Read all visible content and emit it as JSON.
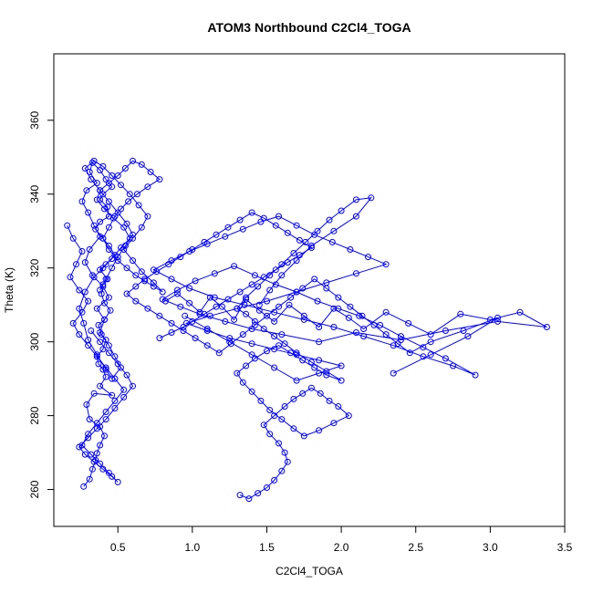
{
  "chart_data": {
    "type": "scatter",
    "title": "ATOM3 Northbound C2Cl4_TOGA",
    "xlabel": "C2Cl4_TOGA",
    "ylabel": "Theta (K)",
    "xlim": [
      0.07,
      3.5
    ],
    "ylim": [
      250,
      378
    ],
    "x_ticks": [
      0.5,
      1.0,
      1.5,
      2.0,
      2.5,
      3.0,
      3.5
    ],
    "x_tick_labels": [
      "0.5",
      "1.0",
      "1.5",
      "2.0",
      "2.5",
      "3.0",
      "3.5"
    ],
    "y_ticks": [
      260,
      280,
      300,
      320,
      340,
      360
    ],
    "y_tick_labels": [
      "260",
      "280",
      "300",
      "320",
      "340",
      "360"
    ],
    "marker": "open-circle",
    "connected": true,
    "grid": false,
    "legend": "none",
    "color": "#0000ff",
    "series": [
      {
        "x": [
          0.27,
          0.31,
          0.33,
          0.35,
          0.36,
          0.38,
          0.41,
          0.38,
          0.31,
          0.29,
          0.34,
          0.46,
          0.38,
          0.42,
          0.4,
          0.37,
          0.36,
          0.4,
          0.42,
          0.39,
          0.37,
          0.41,
          0.45,
          0.41,
          0.39,
          0.4,
          0.43,
          0.38,
          0.42,
          0.48,
          0.44,
          0.4,
          0.35,
          0.38,
          0.44,
          0.43,
          0.38,
          0.4,
          0.46,
          0.42,
          0.38,
          0.33,
          0.31,
          0.36,
          0.29,
          0.26,
          0.3,
          0.34,
          0.38,
          0.31,
          0.28,
          0.33,
          0.4,
          0.44,
          0.36,
          0.41,
          0.38,
          0.44,
          0.48,
          0.52,
          0.46,
          0.42,
          0.36,
          0.3,
          0.27,
          0.24,
          0.28,
          0.34,
          0.4,
          0.46,
          0.52,
          0.58,
          0.54,
          0.47,
          0.41,
          0.36,
          0.38,
          0.44,
          0.5,
          0.55,
          0.6,
          0.66,
          0.72,
          0.78,
          0.7,
          0.63,
          0.57,
          0.52,
          0.48,
          0.44,
          0.4,
          0.44,
          0.5,
          0.56,
          0.62,
          0.68,
          0.74,
          0.8,
          0.74,
          0.66,
          0.6,
          0.54,
          0.6,
          0.66,
          0.7,
          0.64,
          0.58,
          0.52,
          0.46,
          0.4,
          0.34,
          0.28,
          0.32,
          0.38,
          0.44,
          0.5,
          0.56,
          0.6,
          0.55,
          0.5,
          0.46,
          0.42,
          0.38
        ],
        "y": [
          260.8,
          262.8,
          265.5,
          268.0,
          269.8,
          272.0,
          274.5,
          277.0,
          279.0,
          283.0,
          286.0,
          285.5,
          288.0,
          290.5,
          292.5,
          294.0,
          296.0,
          298.0,
          300.5,
          302.0,
          304.5,
          306.0,
          308.5,
          310.5,
          313.0,
          315.5,
          317.0,
          319.5,
          321.0,
          323.5,
          326.0,
          328.0,
          330.5,
          332.5,
          334.0,
          336.5,
          338.5,
          340.0,
          342.0,
          344.0,
          346.5,
          348.5,
          346.0,
          343.0,
          341.0,
          338.0,
          335.0,
          331.5,
          328.5,
          325.0,
          321.5,
          318.0,
          315.0,
          312.0,
          309.0,
          306.0,
          302.5,
          299.0,
          296.0,
          293.0,
          290.0,
          292.5,
          296.5,
          300.5,
          305.0,
          309.0,
          313.5,
          317.5,
          320.0,
          322.5,
          325.5,
          328.0,
          331.0,
          333.5,
          336.0,
          338.5,
          341.0,
          343.0,
          345.0,
          347.0,
          349.0,
          348.0,
          346.0,
          344.0,
          342.0,
          340.0,
          338.0,
          336.0,
          334.0,
          331.0,
          328.0,
          325.0,
          322.0,
          320.0,
          318.0,
          316.5,
          315.0,
          313.5,
          316.0,
          319.0,
          322.0,
          325.0,
          328.0,
          331.0,
          334.0,
          337.0,
          340.0,
          342.5,
          345.0,
          347.5,
          349.0,
          347.0,
          344.0,
          341.0,
          338.0,
          335.0,
          332.0,
          329.0,
          326.0,
          323.0,
          320.0,
          317.0,
          314.0
        ]
      },
      {
        "x": [
          0.82,
          0.9,
          0.98,
          1.05,
          1.12,
          1.2,
          1.28,
          1.36,
          1.45,
          1.55,
          1.65,
          1.75,
          1.85,
          1.95,
          2.05,
          2.15,
          2.3,
          2.45,
          2.6,
          2.8,
          3.0,
          3.2,
          3.38,
          3.05,
          2.7,
          2.4,
          2.1,
          1.85,
          1.6,
          1.4,
          1.22,
          1.05,
          0.92,
          0.8,
          0.9,
          1.02,
          1.15,
          1.28,
          1.42,
          1.56,
          1.7,
          1.84,
          1.98,
          2.12,
          2.26,
          2.4,
          2.55,
          2.7,
          2.9,
          2.75,
          2.55,
          2.35,
          2.15,
          1.95,
          1.75,
          1.55,
          1.35,
          1.15,
          0.98,
          0.86,
          0.74,
          0.86,
          0.98,
          1.1,
          1.22,
          1.34,
          1.46,
          1.58,
          1.7,
          1.82,
          1.94,
          2.06,
          2.18,
          2.3,
          2.1,
          1.9,
          1.7,
          1.5,
          1.3,
          1.12,
          0.96,
          1.1,
          1.25,
          1.4,
          1.55,
          1.7,
          1.85,
          2.0,
          1.85,
          1.7,
          1.55,
          1.4,
          1.25,
          1.1,
          0.95
        ],
        "y": [
          311.0,
          313.0,
          310.5,
          308.0,
          312.0,
          309.5,
          306.0,
          311.5,
          308.5,
          305.5,
          310.0,
          307.0,
          304.0,
          309.0,
          306.5,
          303.5,
          308.0,
          305.0,
          302.0,
          307.5,
          306.0,
          308.0,
          304.0,
          305.5,
          303.0,
          300.5,
          302.5,
          300.0,
          302.0,
          303.5,
          305.5,
          307.5,
          309.5,
          311.5,
          314.0,
          316.5,
          318.5,
          320.5,
          318.0,
          315.5,
          313.5,
          311.0,
          309.0,
          307.0,
          304.5,
          301.5,
          298.5,
          295.5,
          291.0,
          293.5,
          296.0,
          299.0,
          301.5,
          304.0,
          306.0,
          308.0,
          310.0,
          312.0,
          314.5,
          317.0,
          319.5,
          322.0,
          324.5,
          326.5,
          328.5,
          330.5,
          332.5,
          334.0,
          331.5,
          329.0,
          327.0,
          325.0,
          323.0,
          321.0,
          318.5,
          316.0,
          313.5,
          311.0,
          309.0,
          307.0,
          305.0,
          303.0,
          301.0,
          299.5,
          298.0,
          296.5,
          295.0,
          293.5,
          291.5,
          289.5,
          293.0,
          296.5,
          300.0,
          303.5,
          307.0
        ]
      },
      {
        "x": [
          1.32,
          1.38,
          1.44,
          1.5,
          1.55,
          1.6,
          1.64,
          1.62,
          1.58,
          1.52,
          1.48,
          1.55,
          1.62,
          1.68,
          1.74,
          1.8,
          1.86,
          1.92,
          1.98,
          2.05,
          1.95,
          1.85,
          1.75,
          1.68,
          1.6,
          1.52,
          1.46,
          1.4,
          1.34,
          1.3,
          1.36,
          1.42,
          1.5,
          1.58,
          1.66,
          1.74,
          1.82,
          1.9,
          2.0,
          1.9,
          1.8,
          1.7,
          1.62,
          1.55,
          1.48,
          1.42,
          1.36,
          1.3,
          1.36,
          1.44,
          1.52,
          1.6,
          1.68,
          1.76,
          1.84,
          1.92,
          2.0,
          2.1,
          2.2,
          2.1,
          1.95,
          1.8,
          1.7,
          1.6,
          1.52,
          1.45
        ],
        "y": [
          258.5,
          257.5,
          259.0,
          260.5,
          262.5,
          265.0,
          267.5,
          270.0,
          272.5,
          275.0,
          277.5,
          280.0,
          282.5,
          284.5,
          286.0,
          287.5,
          286.0,
          284.0,
          282.5,
          280.0,
          278.0,
          276.0,
          274.5,
          276.5,
          279.0,
          281.5,
          284.0,
          286.5,
          289.0,
          291.5,
          293.5,
          295.5,
          297.5,
          299.0,
          297.0,
          295.0,
          293.0,
          291.0,
          289.5,
          292.0,
          294.5,
          297.0,
          299.5,
          301.5,
          303.5,
          305.5,
          307.5,
          309.0,
          312.0,
          315.0,
          318.0,
          321.0,
          324.0,
          327.0,
          330.0,
          333.0,
          335.5,
          338.5,
          339.0,
          334.0,
          330.0,
          326.0,
          322.0,
          318.0,
          314.0,
          310.0
        ]
      },
      {
        "x": [
          0.78,
          0.86,
          0.94,
          1.0,
          1.08,
          1.16,
          1.24,
          1.32,
          1.4,
          1.48,
          1.56,
          1.64,
          1.72,
          1.8,
          1.72,
          1.64,
          1.56,
          1.48,
          1.4,
          1.32,
          1.24,
          1.16,
          1.08,
          1.0,
          0.92,
          0.84,
          0.76,
          0.68,
          0.62,
          0.56,
          0.62,
          0.7,
          0.78,
          0.86,
          0.94,
          1.02,
          1.1,
          1.18,
          1.26,
          1.34,
          1.42,
          1.5,
          1.58,
          1.66,
          1.74,
          1.82,
          1.9,
          1.98,
          2.06,
          2.14,
          2.22,
          2.3,
          2.38,
          2.46,
          2.6,
          2.82,
          3.05,
          2.85,
          2.6,
          2.35
        ],
        "y": [
          301.0,
          302.5,
          304.0,
          305.5,
          307.5,
          309.5,
          311.5,
          313.5,
          315.5,
          317.5,
          319.5,
          321.5,
          323.5,
          325.5,
          327.5,
          329.5,
          331.5,
          333.5,
          335.0,
          333.0,
          331.0,
          329.0,
          327.0,
          325.0,
          323.0,
          321.0,
          319.0,
          317.0,
          315.0,
          313.0,
          311.0,
          309.0,
          307.0,
          305.0,
          303.0,
          301.0,
          299.0,
          297.0,
          299.5,
          302.0,
          304.5,
          307.0,
          309.5,
          312.0,
          314.5,
          317.0,
          314.5,
          312.0,
          309.5,
          307.0,
          304.5,
          302.0,
          299.5,
          297.0,
          300.0,
          303.0,
          306.5,
          301.5,
          296.5,
          291.5
        ]
      },
      {
        "x": [
          0.16,
          0.2,
          0.26,
          0.22,
          0.18,
          0.24,
          0.3,
          0.26,
          0.2,
          0.24,
          0.3,
          0.36,
          0.42,
          0.48,
          0.54,
          0.48,
          0.42,
          0.36,
          0.3,
          0.26,
          0.32,
          0.38,
          0.44,
          0.5,
          0.46,
          0.4,
          0.34,
          0.28,
          0.24,
          0.3,
          0.36,
          0.42,
          0.48,
          0.54,
          0.6,
          0.56,
          0.5,
          0.44,
          0.38,
          0.32
        ],
        "y": [
          331.5,
          328.0,
          324.5,
          321.0,
          317.5,
          314.0,
          311.0,
          308.0,
          305.0,
          302.0,
          299.0,
          296.0,
          293.0,
          290.0,
          287.0,
          284.0,
          281.0,
          278.0,
          275.0,
          272.0,
          269.5,
          267.0,
          264.5,
          262.0,
          263.5,
          265.5,
          267.5,
          269.5,
          271.5,
          274.0,
          276.5,
          279.0,
          282.0,
          285.0,
          288.0,
          291.0,
          294.0,
          297.0,
          300.0,
          303.0
        ]
      }
    ]
  }
}
